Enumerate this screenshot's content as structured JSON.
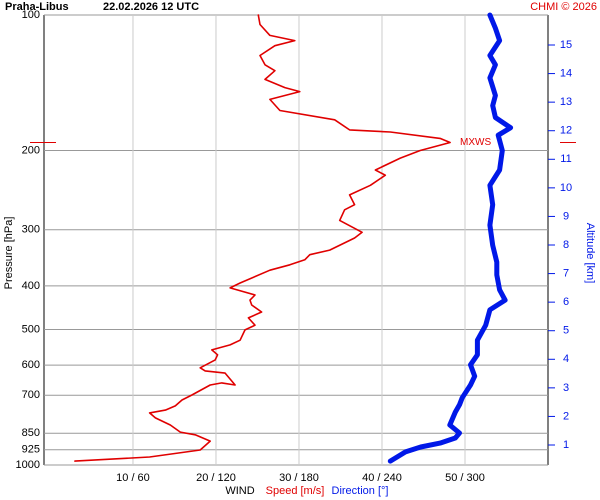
{
  "chart_data": {
    "type": "line",
    "title": "Praha-Libus",
    "subtitle": "22.02.2026 12 UTC",
    "credit": "CHMI © 2026",
    "xlabel": "WIND",
    "ylabel": "Pressure [hPa]",
    "y2label": "Altitude [km]",
    "ylim": [
      100,
      1000
    ],
    "ylog": true,
    "y_inverted": true,
    "yticks": [
      100,
      200,
      300,
      400,
      500,
      600,
      700,
      850,
      925,
      1000
    ],
    "y2lim": [
      0.3,
      16.05
    ],
    "y2ticks": [
      1,
      2,
      3,
      4,
      5,
      6,
      7,
      8,
      9,
      10,
      11,
      12,
      13,
      14,
      15
    ],
    "xlim": [
      -0.72,
      60
    ],
    "x2lim": [
      -4.3,
      360
    ],
    "xticks": [
      {
        "value": 10,
        "label": "10 / 60"
      },
      {
        "value": 20,
        "label": "20 / 120"
      },
      {
        "value": 30,
        "label": "30 / 180"
      },
      {
        "value": 40,
        "label": "40 / 240"
      },
      {
        "value": 50,
        "label": "50 / 300"
      }
    ],
    "grid": true,
    "annotations": [
      {
        "text": "MXWS",
        "pressure": 192
      }
    ],
    "series": [
      {
        "name": "Speed [m/s]",
        "color": "#e00000",
        "axis": "x",
        "y": [
          980,
          960,
          926,
          885,
          857,
          845,
          815,
          786,
          766,
          755,
          739,
          717,
          699,
          664,
          657,
          664,
          625,
          618,
          608,
          584,
          569,
          555,
          541,
          528,
          501,
          489,
          471,
          457,
          441,
          430,
          419,
          404,
          394,
          369,
          359,
          350,
          341,
          333,
          313,
          304,
          286,
          271,
          264,
          251,
          239,
          227,
          221,
          208,
          200,
          192,
          188,
          182,
          180,
          171,
          163,
          154,
          148,
          145,
          139,
          133,
          129,
          123,
          117,
          114,
          111,
          105,
          100
        ],
        "values": [
          3.0,
          12.0,
          18.1,
          19.3,
          17.5,
          15.7,
          14.5,
          12.7,
          12.0,
          13.9,
          15.1,
          15.9,
          17.1,
          19.3,
          20.7,
          22.3,
          21.1,
          18.7,
          18.1,
          19.9,
          20.2,
          19.5,
          21.7,
          22.9,
          23.5,
          24.7,
          23.9,
          25.5,
          24.3,
          24.1,
          24.7,
          21.7,
          22.9,
          26.5,
          28.9,
          30.7,
          31.3,
          33.7,
          36.7,
          37.6,
          34.9,
          35.5,
          36.7,
          36.1,
          38.6,
          40.4,
          39.2,
          42.2,
          44.6,
          48.2,
          47.0,
          41.0,
          36.1,
          34.3,
          27.7,
          26.5,
          30.1,
          28.3,
          25.9,
          27.1,
          25.9,
          25.3,
          27.1,
          29.5,
          26.5,
          25.3,
          25.1
        ]
      },
      {
        "name": "Direction [°]",
        "color": "#0018e8",
        "axis": "x2",
        "y": [
          980,
          935,
          912,
          894,
          871,
          849,
          815,
          763,
          735,
          709,
          664,
          635,
          599,
          569,
          528,
          489,
          452,
          430,
          408,
          378,
          354,
          325,
          293,
          264,
          239,
          221,
          200,
          185,
          178,
          169,
          159,
          151,
          138,
          129,
          123,
          114,
          107,
          100
        ],
        "values": [
          246,
          257,
          268,
          282,
          293,
          296,
          289,
          293,
          296,
          298,
          304,
          307,
          304,
          309,
          309,
          315,
          318,
          329,
          325,
          323,
          323,
          320,
          318,
          320,
          318,
          325,
          327,
          324,
          333,
          322,
          320,
          322,
          318,
          322,
          318,
          325,
          322,
          318
        ]
      }
    ]
  }
}
